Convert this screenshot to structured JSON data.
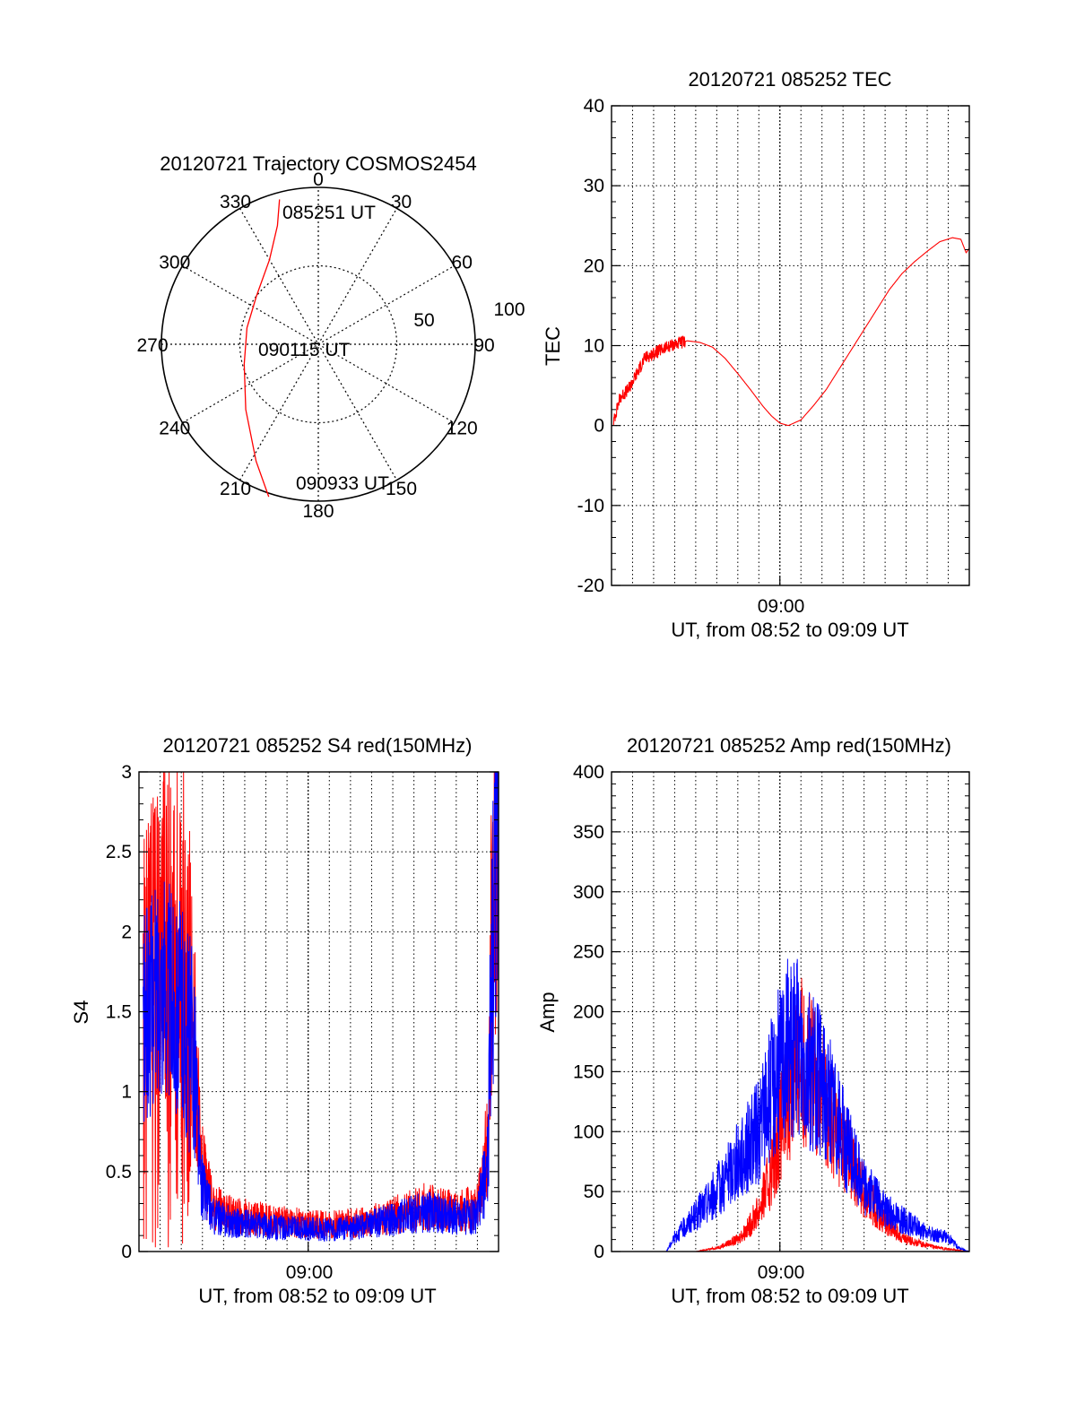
{
  "colors": {
    "red": "#ff0000",
    "blue": "#0000ff",
    "axis": "#000000"
  },
  "chart_data": [
    {
      "type": "scatter",
      "subtype": "polar-trajectory",
      "title": "20120721 Trajectory COSMOS2454",
      "azimuth_labels": [
        "0",
        "30",
        "60",
        "90",
        "120",
        "150",
        "180",
        "210",
        "240",
        "270",
        "300",
        "330"
      ],
      "ring_labels": [
        "50",
        "100"
      ],
      "annotations": {
        "start": "085251 UT",
        "middle": "090115 UT",
        "end": "090933 UT"
      },
      "trajectory": [
        {
          "az": 345,
          "zen": 86
        },
        {
          "az": 341,
          "zen": 72
        },
        {
          "az": 330,
          "zen": 56
        },
        {
          "az": 308,
          "zen": 45
        },
        {
          "az": 283,
          "zen": 42
        },
        {
          "az": 255,
          "zen": 44
        },
        {
          "az": 228,
          "zen": 56
        },
        {
          "az": 208,
          "zen": 76
        },
        {
          "az": 198,
          "zen": 92
        }
      ],
      "color": "red"
    },
    {
      "type": "line",
      "title": "20120721 085252 TEC",
      "xlabel": "UT, from 08:52 to 09:09 UT",
      "ylabel": "TEC",
      "x_tick_label": "09:00",
      "xlim": [
        0,
        17
      ],
      "ylim": [
        -20,
        40
      ],
      "y_ticks": [
        "-20",
        "-10",
        "0",
        "10",
        "20",
        "30",
        "40"
      ],
      "grid": true,
      "series": [
        {
          "color": "red",
          "x": [
            0.1,
            0.4,
            0.8,
            1.2,
            1.6,
            2.0,
            2.4,
            2.8,
            3.2,
            3.6,
            4.2,
            4.8,
            5.4,
            6.0,
            6.6,
            7.2,
            7.6,
            8.0,
            8.4,
            9.0,
            9.6,
            10.2,
            10.8,
            11.4,
            12.0,
            12.6,
            13.2,
            13.8,
            14.4,
            15.0,
            15.6,
            16.2,
            16.6,
            16.85,
            17.0
          ],
          "y": [
            0.5,
            3.5,
            4.5,
            6.5,
            8.5,
            9.0,
            9.5,
            10.0,
            10.3,
            10.6,
            10.4,
            9.8,
            8.4,
            6.5,
            4.5,
            2.4,
            1.2,
            0.3,
            0.0,
            0.7,
            2.5,
            4.5,
            7.0,
            9.5,
            12.0,
            14.5,
            17.0,
            19.0,
            20.5,
            21.8,
            23.0,
            23.5,
            23.3,
            21.6,
            22.2
          ]
        }
      ]
    },
    {
      "type": "line",
      "title": "20120721 085252 S4 red(150MHz)",
      "xlabel": "UT, from 08:52 to 09:09 UT",
      "ylabel": "S4",
      "x_tick_label": "09:00",
      "xlim": [
        0,
        17
      ],
      "ylim": [
        0,
        3
      ],
      "y_ticks": [
        "0",
        "0.5",
        "1",
        "1.5",
        "2",
        "2.5",
        "3"
      ],
      "grid": true,
      "series": [
        {
          "color": "red",
          "x": [
            0.2,
            1.0,
            2.0,
            2.6,
            2.9,
            3.5,
            4.5,
            6.0,
            7.5,
            9.0,
            10.5,
            12.0,
            13.5,
            15.0,
            16.0,
            16.5,
            16.7,
            17.0
          ],
          "y": [
            1.6,
            2.0,
            1.7,
            1.3,
            0.5,
            0.25,
            0.2,
            0.18,
            0.16,
            0.15,
            0.16,
            0.2,
            0.25,
            0.22,
            0.25,
            0.6,
            2.0,
            3.0
          ]
        },
        {
          "color": "blue",
          "x": [
            0.2,
            1.0,
            2.0,
            2.6,
            2.9,
            3.5,
            4.5,
            6.0,
            7.5,
            9.0,
            10.5,
            12.0,
            13.5,
            15.0,
            16.0,
            16.5,
            16.7,
            17.0
          ],
          "y": [
            1.4,
            1.7,
            1.5,
            1.2,
            0.4,
            0.2,
            0.16,
            0.14,
            0.13,
            0.12,
            0.14,
            0.18,
            0.22,
            0.2,
            0.2,
            0.5,
            1.8,
            3.0
          ]
        }
      ]
    },
    {
      "type": "line",
      "title": "20120721 085252 Amp red(150MHz)",
      "xlabel": "UT, from 08:52 to 09:09 UT",
      "ylabel": "Amp",
      "x_tick_label": "09:00",
      "xlim": [
        0,
        17
      ],
      "ylim": [
        0,
        400
      ],
      "y_ticks": [
        "0",
        "50",
        "100",
        "150",
        "200",
        "250",
        "300",
        "350",
        "400"
      ],
      "grid": true,
      "series": [
        {
          "color": "red",
          "x": [
            0,
            4,
            5,
            6,
            6.5,
            7,
            7.5,
            8,
            8.5,
            9,
            9.5,
            10,
            10.5,
            11,
            11.5,
            12,
            13,
            14,
            15,
            16,
            17
          ],
          "y": [
            0,
            0,
            3,
            10,
            20,
            35,
            60,
            100,
            140,
            160,
            150,
            130,
            110,
            90,
            70,
            50,
            25,
            10,
            5,
            2,
            0
          ]
        },
        {
          "color": "blue",
          "x": [
            0,
            2.6,
            3,
            4,
            5,
            6,
            7,
            7.5,
            8,
            8.5,
            9,
            9.5,
            10,
            10.5,
            11,
            11.5,
            12,
            13,
            14,
            15,
            16,
            16.5,
            17
          ],
          "y": [
            0,
            0,
            12,
            30,
            50,
            75,
            100,
            130,
            155,
            175,
            165,
            150,
            140,
            120,
            95,
            75,
            55,
            35,
            25,
            15,
            12,
            3,
            0
          ]
        }
      ]
    }
  ]
}
